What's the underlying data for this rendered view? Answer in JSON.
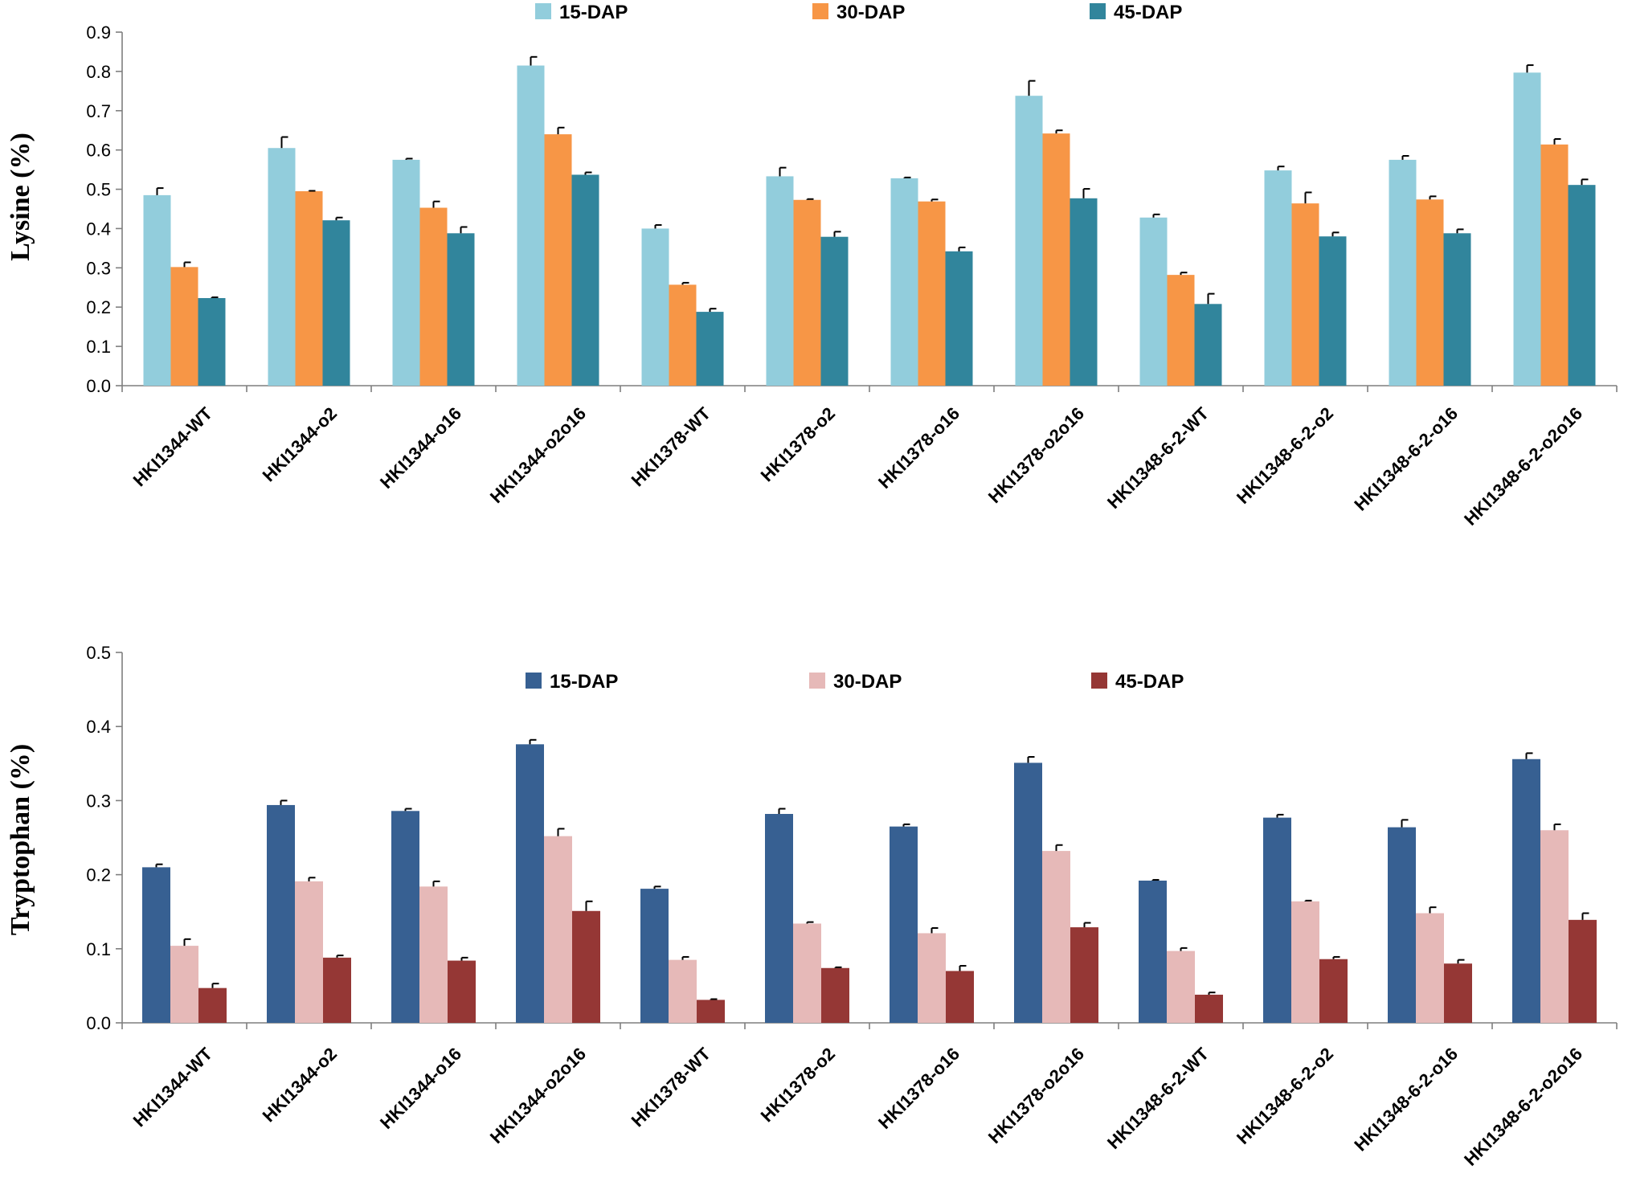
{
  "chart_data": [
    {
      "type": "bar",
      "title": "",
      "xlabel": "",
      "ylabel": "Lysine (%)",
      "ylim": [
        0,
        0.9
      ],
      "yticks": [
        "0.0",
        "0.1",
        "0.2",
        "0.3",
        "0.4",
        "0.5",
        "0.6",
        "0.7",
        "0.8",
        "0.9"
      ],
      "grid": false,
      "legend_position": "top",
      "categories": [
        "HKI1344-WT",
        "HKI1344-o2",
        "HKI1344-o16",
        "HKI1344-o2o16",
        "HKI1378-WT",
        "HKI1378-o2",
        "HKI1378-o16",
        "HKI1378-o2o16",
        "HKI1348-6-2-WT",
        "HKI1348-6-2-o2",
        "HKI1348-6-2-o16",
        "HKI1348-6-2-o2o16"
      ],
      "series": [
        {
          "name": "15-DAP",
          "color": "#92cddc",
          "values": [
            0.485,
            0.605,
            0.575,
            0.815,
            0.4,
            0.533,
            0.528,
            0.738,
            0.428,
            0.548,
            0.575,
            0.797
          ],
          "errors": [
            0.018,
            0.028,
            0.003,
            0.022,
            0.009,
            0.022,
            0.002,
            0.038,
            0.008,
            0.01,
            0.01,
            0.019
          ]
        },
        {
          "name": "30-DAP",
          "color": "#f79646",
          "values": [
            0.302,
            0.495,
            0.453,
            0.64,
            0.257,
            0.473,
            0.469,
            0.642,
            0.282,
            0.464,
            0.474,
            0.614
          ],
          "errors": [
            0.012,
            0.001,
            0.016,
            0.017,
            0.005,
            0.002,
            0.005,
            0.008,
            0.006,
            0.028,
            0.008,
            0.014
          ]
        },
        {
          "name": "45-DAP",
          "color": "#31859c",
          "values": [
            0.223,
            0.421,
            0.388,
            0.537,
            0.188,
            0.379,
            0.342,
            0.477,
            0.208,
            0.38,
            0.388,
            0.511
          ],
          "errors": [
            0.002,
            0.007,
            0.016,
            0.006,
            0.008,
            0.013,
            0.01,
            0.024,
            0.026,
            0.01,
            0.01,
            0.014
          ]
        }
      ]
    },
    {
      "type": "bar",
      "title": "",
      "xlabel": "",
      "ylabel": "Tryptophan (%)",
      "ylim": [
        0,
        0.5
      ],
      "yticks": [
        "0.0",
        "0.1",
        "0.2",
        "0.3",
        "0.4",
        "0.5"
      ],
      "grid": false,
      "legend_position": "top",
      "categories": [
        "HKI1344-WT",
        "HKI1344-o2",
        "HKI1344-o16",
        "HKI1344-o2o16",
        "HKI1378-WT",
        "HKI1378-o2",
        "HKI1378-o16",
        "HKI1378-o2o16",
        "HKI1348-6-2-WT",
        "HKI1348-6-2-o2",
        "HKI1348-6-2-o16",
        "HKI1348-6-2-o2o16"
      ],
      "series": [
        {
          "name": "15-DAP",
          "color": "#376092",
          "values": [
            0.21,
            0.294,
            0.286,
            0.376,
            0.181,
            0.282,
            0.265,
            0.351,
            0.192,
            0.277,
            0.264,
            0.356
          ],
          "errors": [
            0.004,
            0.006,
            0.003,
            0.006,
            0.003,
            0.007,
            0.003,
            0.008,
            0.001,
            0.004,
            0.01,
            0.008
          ]
        },
        {
          "name": "30-DAP",
          "color": "#e6b9b8",
          "values": [
            0.104,
            0.191,
            0.184,
            0.252,
            0.085,
            0.134,
            0.121,
            0.232,
            0.097,
            0.164,
            0.148,
            0.26
          ],
          "errors": [
            0.009,
            0.005,
            0.007,
            0.01,
            0.004,
            0.002,
            0.007,
            0.008,
            0.004,
            0.001,
            0.008,
            0.008
          ]
        },
        {
          "name": "45-DAP",
          "color": "#953735",
          "values": [
            0.047,
            0.088,
            0.084,
            0.151,
            0.031,
            0.074,
            0.07,
            0.129,
            0.038,
            0.086,
            0.08,
            0.139
          ],
          "errors": [
            0.006,
            0.003,
            0.004,
            0.013,
            0.001,
            0.001,
            0.007,
            0.006,
            0.003,
            0.003,
            0.005,
            0.009
          ]
        }
      ]
    }
  ]
}
